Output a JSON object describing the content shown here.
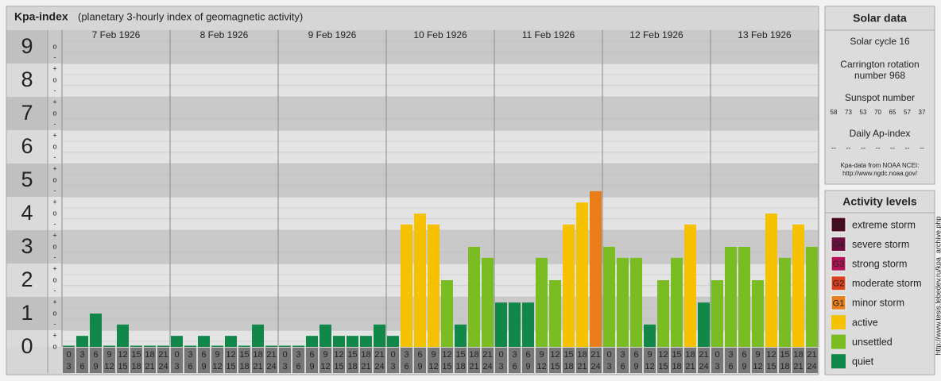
{
  "chart_data": {
    "type": "bar",
    "title": "Kpa-index",
    "subtitle": "(planetary 3-hourly index of geomagnetic activity)",
    "ylim": [
      0,
      9.5
    ],
    "yticks": [
      0,
      1,
      2,
      3,
      4,
      5,
      6,
      7,
      8,
      9
    ],
    "minor_yticks": [
      {
        "value": 0,
        "label": "o"
      },
      {
        "value": 0.33,
        "label": "+"
      },
      {
        "value": 0.67,
        "label": "-"
      },
      {
        "value": 1,
        "label": "o"
      },
      {
        "value": 1.33,
        "label": "+"
      },
      {
        "value": 1.67,
        "label": "-"
      },
      {
        "value": 2,
        "label": "o"
      },
      {
        "value": 2.33,
        "label": "+"
      },
      {
        "value": 2.67,
        "label": "-"
      },
      {
        "value": 3,
        "label": "o"
      },
      {
        "value": 3.33,
        "label": "+"
      },
      {
        "value": 3.67,
        "label": "-"
      },
      {
        "value": 4,
        "label": "o"
      },
      {
        "value": 4.33,
        "label": "+"
      },
      {
        "value": 4.67,
        "label": "-"
      },
      {
        "value": 5,
        "label": "o"
      },
      {
        "value": 5.33,
        "label": "+"
      },
      {
        "value": 5.67,
        "label": "-"
      },
      {
        "value": 6,
        "label": "o"
      },
      {
        "value": 6.33,
        "label": "+"
      },
      {
        "value": 6.67,
        "label": "-"
      },
      {
        "value": 7,
        "label": "o"
      },
      {
        "value": 7.33,
        "label": "+"
      },
      {
        "value": 7.67,
        "label": "-"
      },
      {
        "value": 8,
        "label": "o"
      },
      {
        "value": 8.33,
        "label": "+"
      },
      {
        "value": 8.67,
        "label": "-"
      },
      {
        "value": 9,
        "label": "o"
      }
    ],
    "hours": [
      [
        "0",
        "3"
      ],
      [
        "3",
        "6"
      ],
      [
        "6",
        "9"
      ],
      [
        "9",
        "12"
      ],
      [
        "12",
        "15"
      ],
      [
        "15",
        "18"
      ],
      [
        "18",
        "21"
      ],
      [
        "21",
        "24"
      ]
    ],
    "days": [
      {
        "label": "7 Feb 1926",
        "values": [
          0,
          0.33,
          1,
          0,
          0.67,
          0,
          0,
          0
        ],
        "colors": [
          "#11884a",
          "#11884a",
          "#11884a",
          "#11884a",
          "#11884a",
          "#11884a",
          "#11884a",
          "#11884a"
        ]
      },
      {
        "label": "8 Feb 1926",
        "values": [
          0.33,
          0,
          0.33,
          0,
          0.33,
          0,
          0.67,
          0
        ],
        "colors": [
          "#11884a",
          "#11884a",
          "#11884a",
          "#11884a",
          "#11884a",
          "#11884a",
          "#11884a",
          "#11884a"
        ]
      },
      {
        "label": "9 Feb 1926",
        "values": [
          0,
          0,
          0.33,
          0.67,
          0.33,
          0.33,
          0.33,
          0.67
        ],
        "colors": [
          "#11884a",
          "#11884a",
          "#11884a",
          "#11884a",
          "#11884a",
          "#11884a",
          "#11884a",
          "#11884a"
        ]
      },
      {
        "label": "10 Feb 1926",
        "values": [
          0.33,
          3.67,
          4,
          3.67,
          2,
          0.67,
          3,
          2.67
        ],
        "colors": [
          "#11884a",
          "#f6c200",
          "#f6c200",
          "#f6c200",
          "#7abd22",
          "#11884a",
          "#7abd22",
          "#7abd22"
        ]
      },
      {
        "label": "11 Feb 1926",
        "values": [
          1.33,
          1.33,
          1.33,
          2.67,
          2,
          3.67,
          4.33,
          4.67
        ],
        "colors": [
          "#11884a",
          "#11884a",
          "#11884a",
          "#7abd22",
          "#7abd22",
          "#f6c200",
          "#f6c200",
          "#e87d1a"
        ]
      },
      {
        "label": "12 Feb 1926",
        "values": [
          3,
          2.67,
          2.67,
          0.67,
          2,
          2.67,
          3.67,
          1.33
        ],
        "colors": [
          "#7abd22",
          "#7abd22",
          "#7abd22",
          "#11884a",
          "#7abd22",
          "#7abd22",
          "#f6c200",
          "#11884a"
        ]
      },
      {
        "label": "13 Feb 1926",
        "values": [
          2,
          3,
          3,
          2,
          4,
          2.67,
          3.67,
          3
        ],
        "colors": [
          "#7abd22",
          "#7abd22",
          "#7abd22",
          "#7abd22",
          "#f6c200",
          "#7abd22",
          "#f6c200",
          "#7abd22"
        ]
      }
    ]
  },
  "solar": {
    "title": "Solar data",
    "cycle": "Solar cycle 16",
    "carrington": [
      "Carrington rotation",
      "number 968"
    ],
    "sunspot_title": "Sunspot number",
    "sunspots": [
      "58",
      "73",
      "53",
      "70",
      "65",
      "57",
      "37"
    ],
    "ap_title": "Daily Ap-index",
    "ap": [
      "--",
      "--",
      "--",
      "--",
      "--",
      "--",
      "--"
    ],
    "source": [
      "Kpa-data from NOAA NCEI:",
      "http://www.ngdc.noaa.gov/"
    ]
  },
  "legend": {
    "title": "Activity levels",
    "items": [
      {
        "badge": "G5",
        "label": "extreme storm",
        "color": "#4a0a1e"
      },
      {
        "badge": "G4",
        "label": "severe storm",
        "color": "#6e0e40"
      },
      {
        "badge": "G3",
        "label": "strong storm",
        "color": "#b01455"
      },
      {
        "badge": "G2",
        "label": "moderate storm",
        "color": "#d8401e"
      },
      {
        "badge": "G1",
        "label": "minor storm",
        "color": "#e8801c"
      },
      {
        "badge": null,
        "label": "active",
        "color": "#f6c200"
      },
      {
        "badge": null,
        "label": "unsettled",
        "color": "#7abd22"
      },
      {
        "badge": null,
        "label": "quiet",
        "color": "#11884a"
      }
    ]
  },
  "credit": "http://www.tesis.lebedev.ru/kpa_archive.php"
}
